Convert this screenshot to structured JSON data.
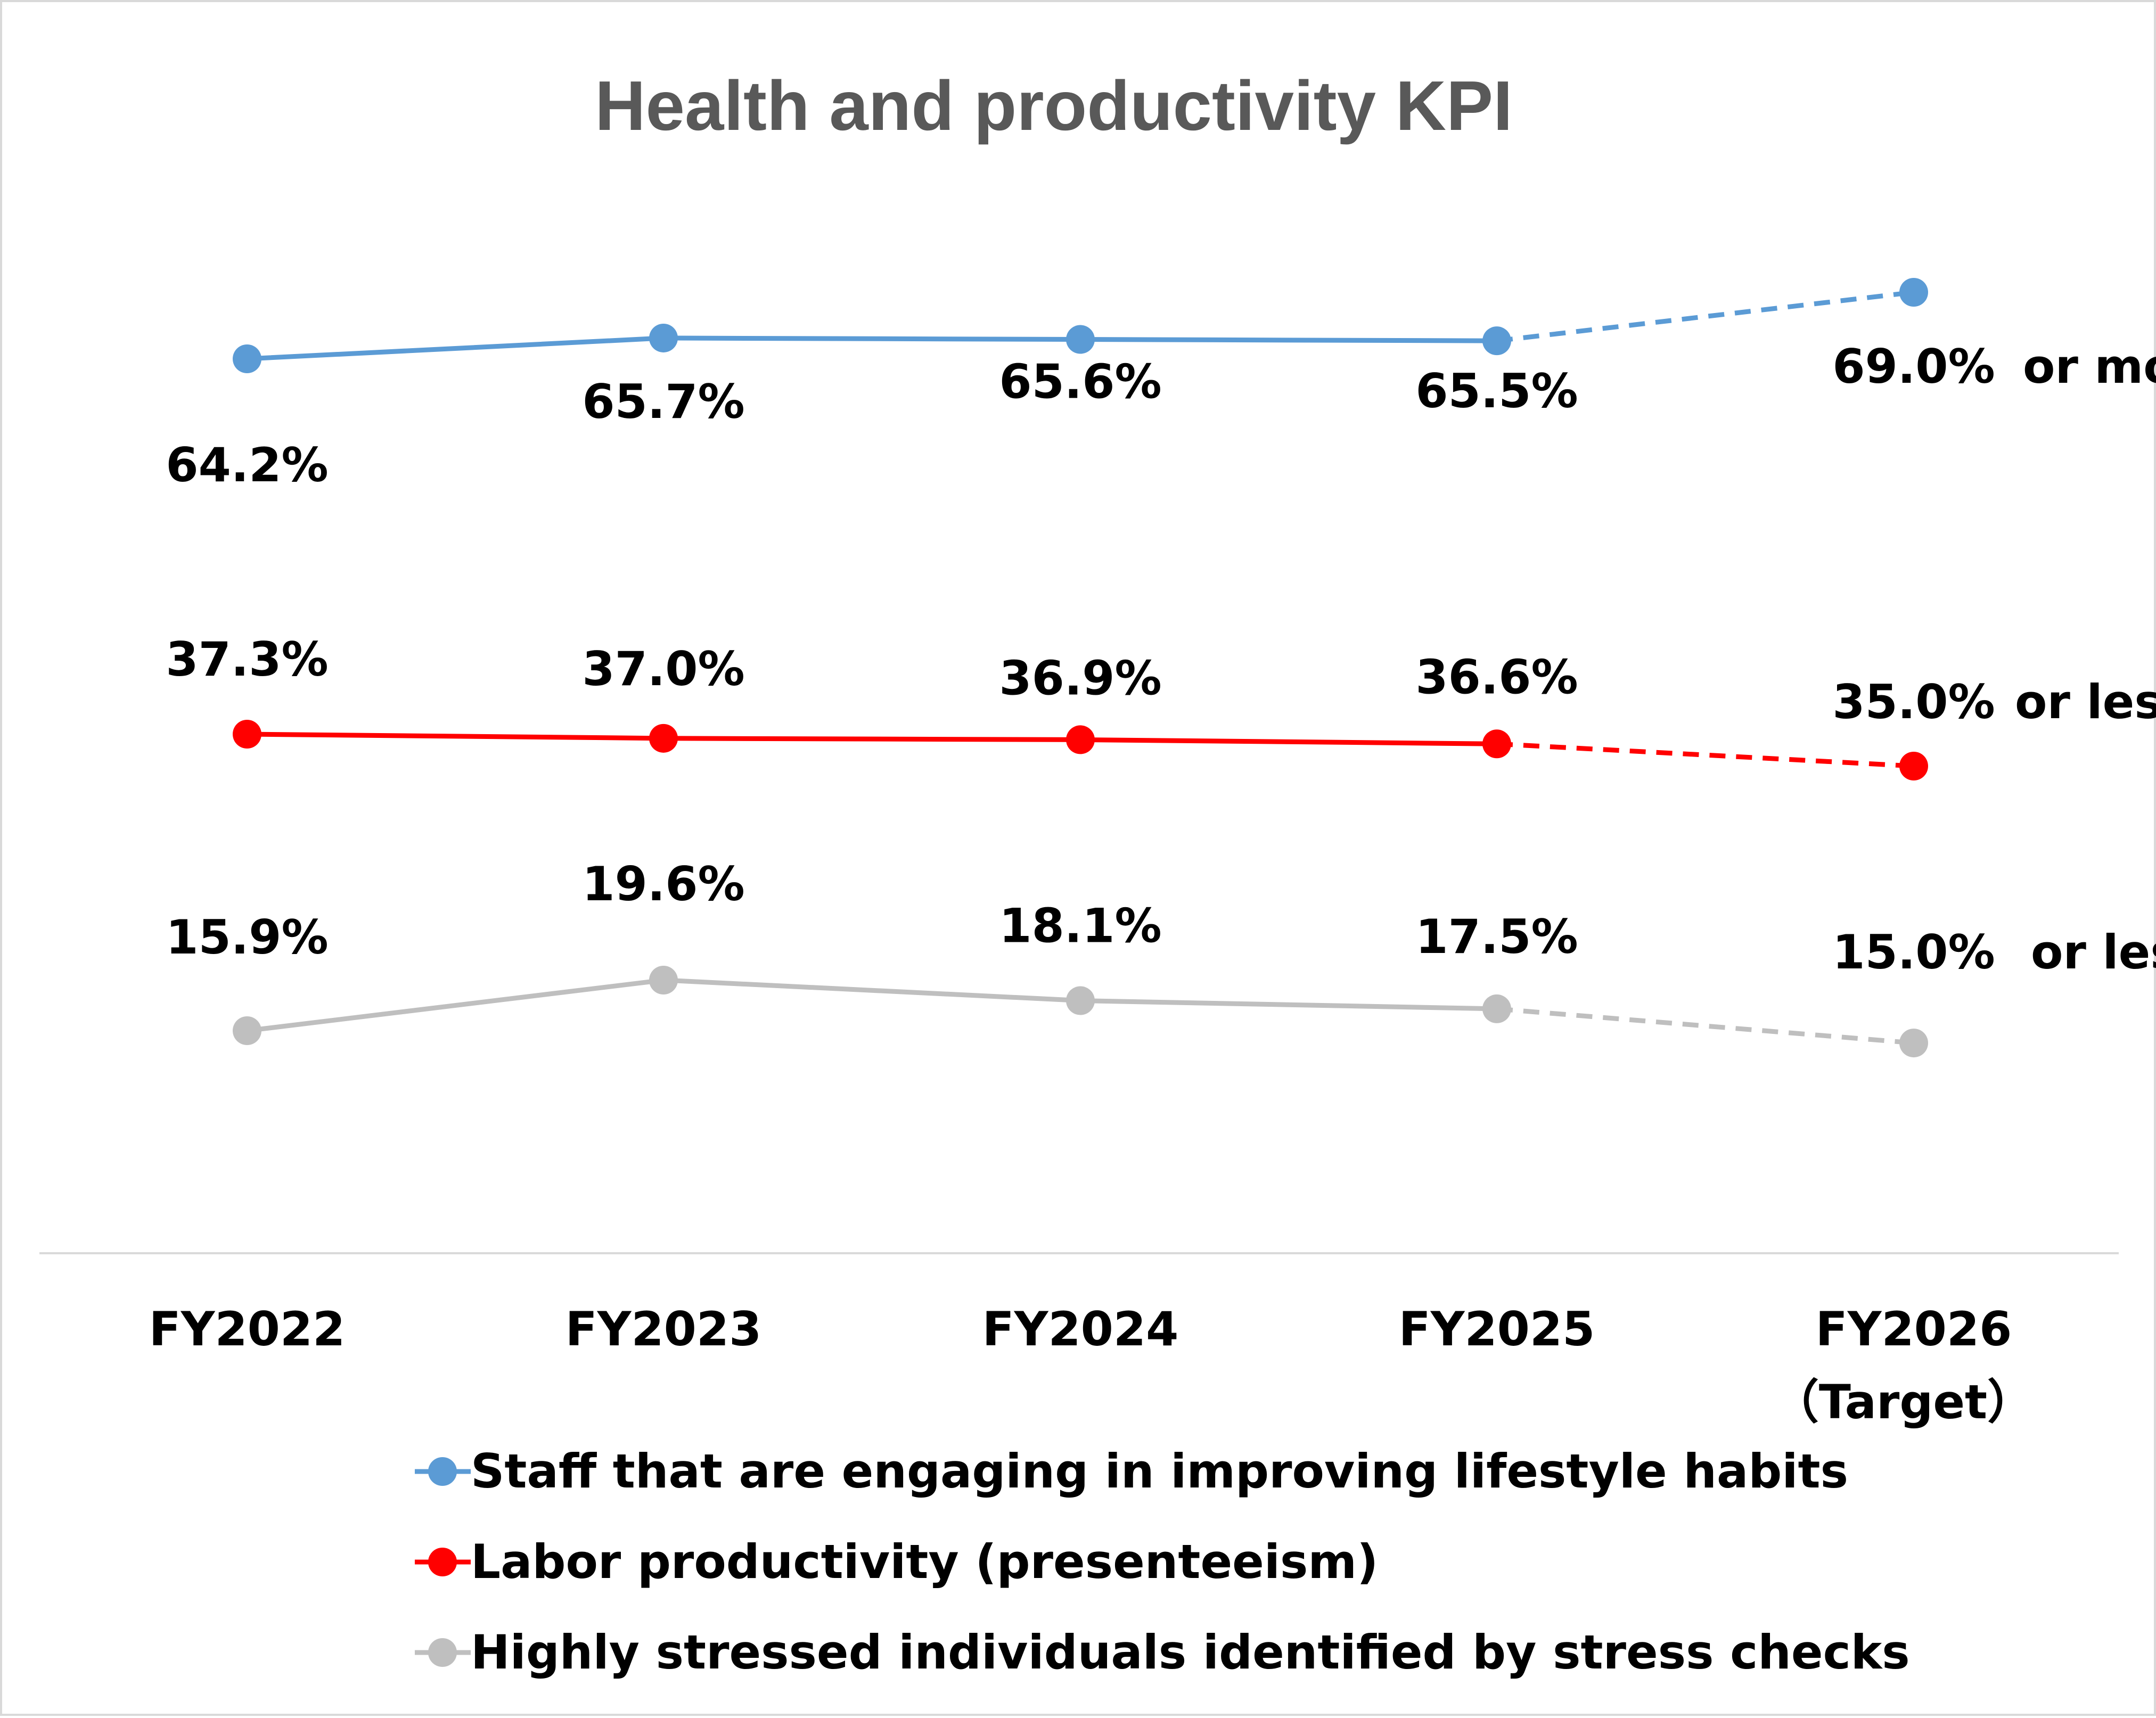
{
  "chart_data": {
    "type": "line",
    "title": "Health and productivity KPI",
    "categories": [
      "FY2022",
      "FY2023",
      "FY2024",
      "FY2025",
      "FY2026"
    ],
    "category_sublabels": [
      "",
      "",
      "",
      "",
      "（Target）"
    ],
    "target_index": 4,
    "series": [
      {
        "name": "Staff that are engaging in improving lifestyle habits",
        "color": "#5b9bd5",
        "values": [
          64.2,
          65.7,
          65.6,
          65.5,
          69.0
        ],
        "labels": [
          "64.2%",
          "65.7%",
          "65.6%",
          "65.5%",
          "69.0%"
        ],
        "target_suffix": "or more"
      },
      {
        "name": "Labor productivity (presenteeism)",
        "color": "#ff0000",
        "values": [
          37.3,
          37.0,
          36.9,
          36.6,
          35.0
        ],
        "labels": [
          "37.3%",
          "37.0%",
          "36.9%",
          "36.6%",
          "35.0%"
        ],
        "target_suffix": "or less"
      },
      {
        "name": "Highly stressed individuals identified by stress checks",
        "color": "#bfbfbf",
        "values": [
          15.9,
          19.6,
          18.1,
          17.5,
          15.0
        ],
        "labels": [
          "15.9%",
          "19.6%",
          "18.1%",
          "17.5%",
          "15.0%"
        ],
        "target_suffix": "or less"
      }
    ],
    "legend_position": "bottom",
    "grid": false
  }
}
